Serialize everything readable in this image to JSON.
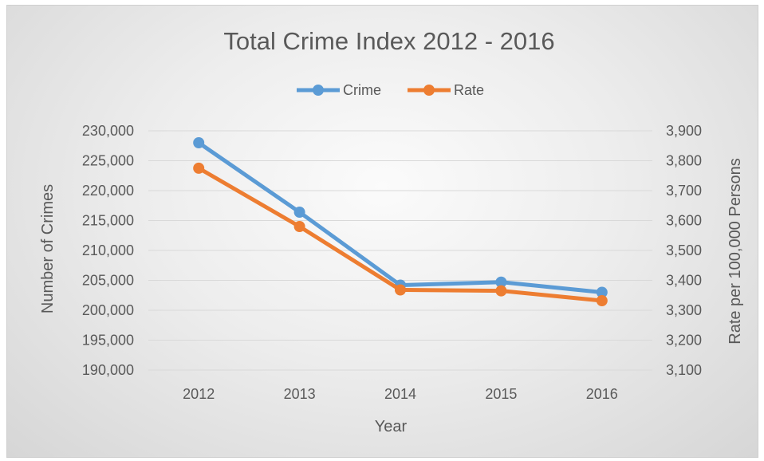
{
  "chart_data": {
    "type": "line",
    "title": "Total Crime Index 2012 - 2016",
    "xlabel": "Year",
    "ylabel": "Number of Crimes",
    "y2label": "Rate per 100,000 Persons",
    "categories": [
      "2012",
      "2013",
      "2014",
      "2015",
      "2016"
    ],
    "ylim": [
      190000,
      230000
    ],
    "y2lim": [
      3100,
      3900
    ],
    "yticks": [
      "190,000",
      "195,000",
      "200,000",
      "205,000",
      "210,000",
      "215,000",
      "220,000",
      "225,000",
      "230,000"
    ],
    "y2ticks": [
      "3,100",
      "3,200",
      "3,300",
      "3,400",
      "3,500",
      "3,600",
      "3,700",
      "3,800",
      "3,900"
    ],
    "series": [
      {
        "name": "Crime",
        "axis": "left",
        "color": "#5b9bd5",
        "values": [
          228000,
          216400,
          204200,
          204700,
          203000
        ]
      },
      {
        "name": "Rate",
        "axis": "right",
        "color": "#ed7d31",
        "values": [
          3775,
          3580,
          3368,
          3365,
          3332
        ]
      }
    ],
    "legend": "top",
    "grid": true
  }
}
